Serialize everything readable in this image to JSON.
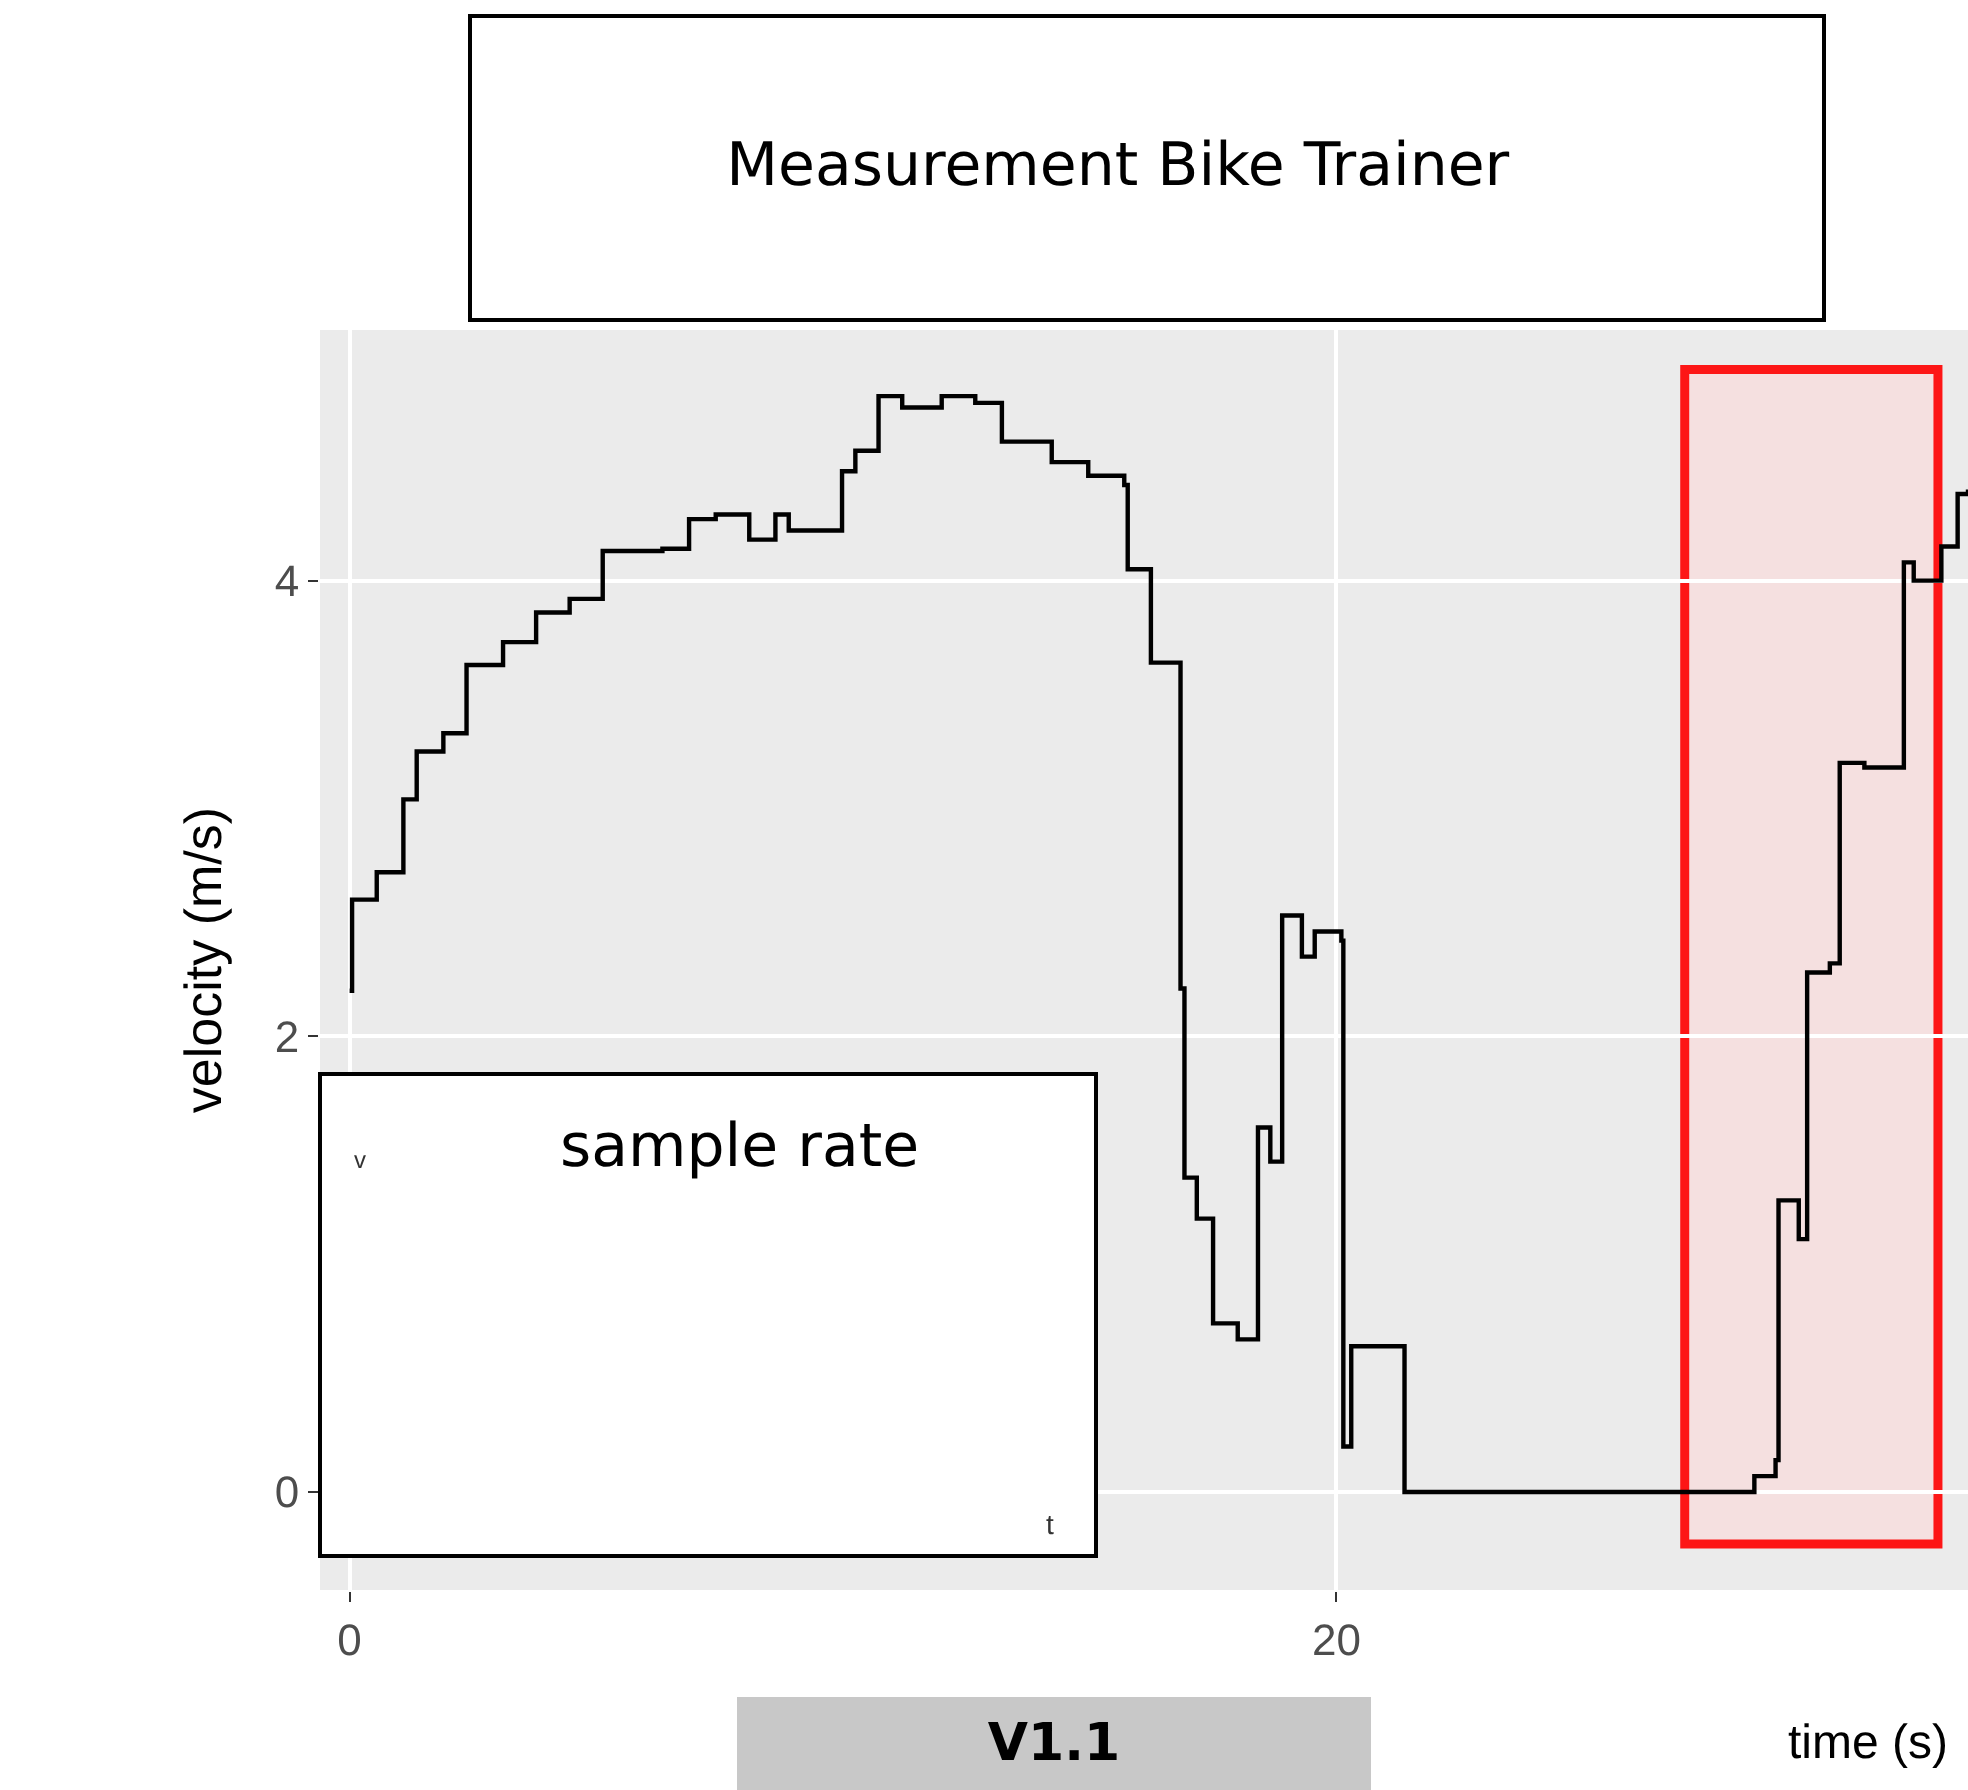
{
  "chart_data": {
    "type": "step",
    "title": "Measurement Bike Trainer",
    "xlabel": "time (s)",
    "ylabel": "velocity (m/s)",
    "x": [
      0,
      0.05,
      0.55,
      1.09,
      1.36,
      1.9,
      2.37,
      3.11,
      3.78,
      4.46,
      5.13,
      6.34,
      6.88,
      7.42,
      8.1,
      8.63,
      8.9,
      9.98,
      10.25,
      10.72,
      11.2,
      12.0,
      12.68,
      13.22,
      14.23,
      14.97,
      15.7,
      15.77,
      16.24,
      16.84,
      16.92,
      17.17,
      17.5,
      18.0,
      18.41,
      18.66,
      18.9,
      19.3,
      19.56,
      20.1,
      20.14,
      20.3,
      21.3,
      21.38,
      28.47,
      28.9,
      28.96,
      29.37,
      29.54,
      30.0,
      30.2,
      30.7,
      31.5,
      31.7,
      32.26,
      32.59,
      32.8
    ],
    "values": [
      2.2,
      2.6,
      2.72,
      3.04,
      3.25,
      3.33,
      3.63,
      3.73,
      3.86,
      3.92,
      4.13,
      4.14,
      4.27,
      4.29,
      4.18,
      4.29,
      4.22,
      4.48,
      4.57,
      4.81,
      4.76,
      4.81,
      4.78,
      4.61,
      4.52,
      4.46,
      4.42,
      4.05,
      3.64,
      2.21,
      1.38,
      1.2,
      0.74,
      0.67,
      1.6,
      1.45,
      2.53,
      2.35,
      2.46,
      2.42,
      0.2,
      0.64,
      0.64,
      0,
      0.07,
      0.14,
      1.28,
      1.11,
      2.28,
      2.32,
      3.2,
      3.18,
      4.08,
      4.0,
      4.15,
      4.38,
      4.4
    ],
    "color": "#000000",
    "xlim": [
      -0.6,
      32.8
    ],
    "xticks": [
      0,
      20
    ],
    "ylim": [
      -0.43,
      5.1
    ],
    "yticks": [
      0,
      2,
      4
    ],
    "grid": true,
    "legend": false,
    "bands": [
      {
        "axis": "x",
        "from": 27.15,
        "to": 32.1,
        "color": "#ff0000"
      }
    ],
    "annotations": [
      "sample rate",
      "v",
      "t",
      "V1.1"
    ]
  }
}
